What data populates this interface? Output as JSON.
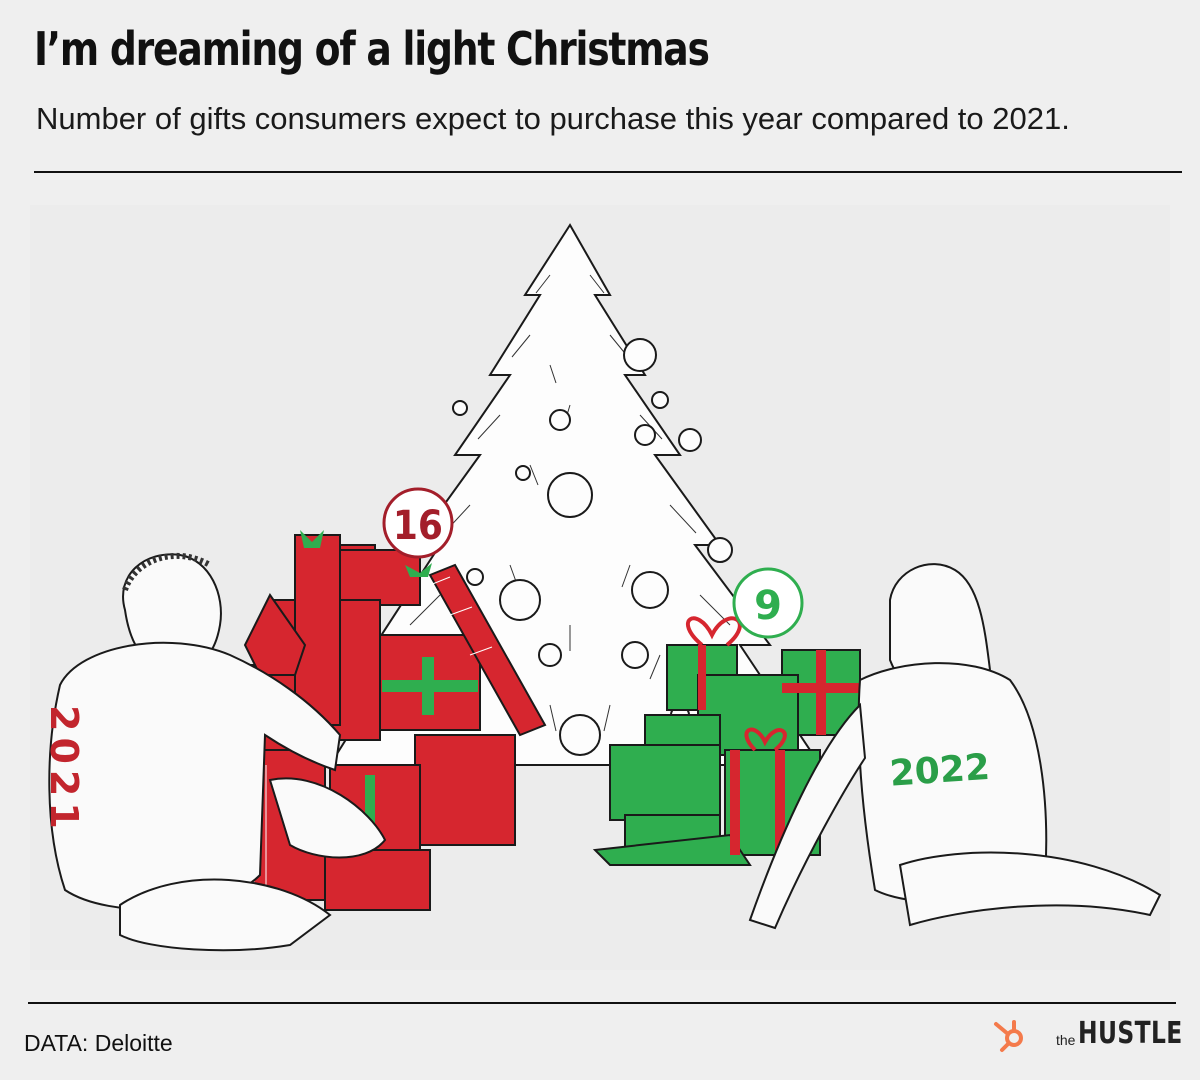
{
  "title": "I’m dreaming of a light Christmas",
  "subtitle": "Number of gifts consumers expect to purchase this year compared to 2021.",
  "source": "DATA: Deloitte",
  "brand": {
    "the": "the",
    "name": "HUSTLE",
    "icon": "hubspot-sprocket-icon",
    "icon_color": "#f47a4b"
  },
  "colors": {
    "red": "#d6262f",
    "green": "#2fae4f",
    "dark_red": "#a31e2a",
    "line": "#1a1a1a",
    "background": "#efefef"
  },
  "chart_data": {
    "type": "bar",
    "style": "illustrated gift piles",
    "categories": [
      "2021",
      "2022"
    ],
    "values": [
      16,
      9
    ],
    "value_labels": [
      "16",
      "9"
    ],
    "series_colors": [
      "#d6262f",
      "#2fae4f"
    ]
  }
}
